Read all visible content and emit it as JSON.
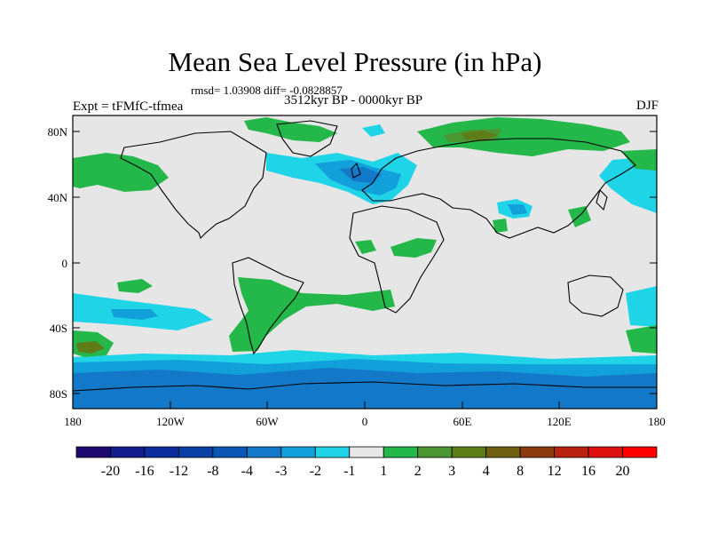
{
  "title": "Mean Sea Level Pressure (in hPa)",
  "stats_line": "rmsd= 1.03908  diff= -0.0828857",
  "experiment_label": "Expt = tFMfC-tfmea",
  "period_label": "3512kyr BP - 0000kyr BP",
  "season_label": "DJF",
  "lat_ticks": [
    "80N",
    "40N",
    "0",
    "40S",
    "80S"
  ],
  "lon_ticks": [
    "180",
    "120W",
    "60W",
    "0",
    "60E",
    "120E",
    "180"
  ],
  "colorbar": {
    "labels": [
      "-20",
      "-16",
      "-12",
      "-8",
      "-4",
      "-3",
      "-2",
      "-1",
      "1",
      "2",
      "3",
      "4",
      "8",
      "12",
      "16",
      "20"
    ],
    "colors": [
      "#1e0a6e",
      "#141b8c",
      "#0b2d9e",
      "#0a3fa6",
      "#0b56b4",
      "#1478c8",
      "#12a0da",
      "#20d4e8",
      "#e8e8e8",
      "#24b84a",
      "#4a9630",
      "#5e7d18",
      "#6e6010",
      "#8a3c10",
      "#b82010",
      "#e01010",
      "#ff0000"
    ]
  },
  "colors": {
    "land_outline": "#000000",
    "neutral": "#e6e6e6"
  }
}
